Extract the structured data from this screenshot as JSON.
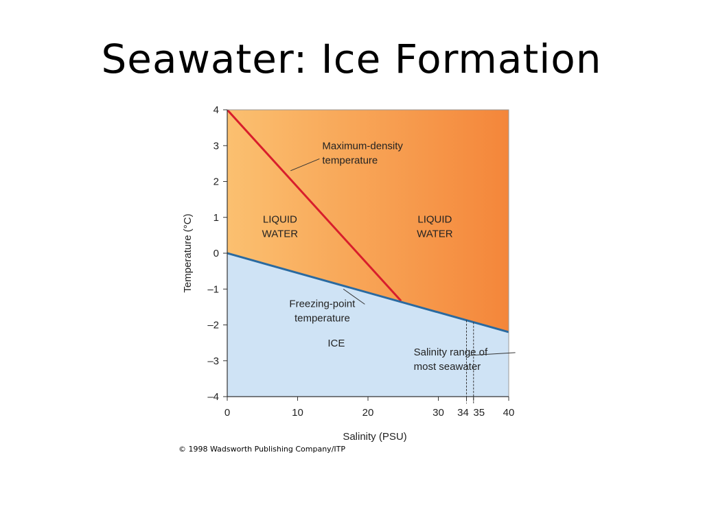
{
  "slide": {
    "title": "Seawater: Ice Formation",
    "credit": "© 1998 Wadsworth Publishing Company/ITP"
  },
  "chart_data": {
    "type": "line",
    "title": "",
    "xlabel": "Salinity (PSU)",
    "ylabel": "Temperature (°C)",
    "xlim": [
      0,
      40
    ],
    "ylim": [
      -4,
      4
    ],
    "x_ticks": [
      "0",
      "10",
      "20",
      "30",
      "34",
      "35",
      "40"
    ],
    "x_tick_values": [
      0,
      10,
      20,
      30,
      34,
      35,
      40
    ],
    "y_ticks": [
      "4",
      "3",
      "2",
      "1",
      "0",
      "–1",
      "–2",
      "–3",
      "–4"
    ],
    "y_tick_values": [
      4,
      3,
      2,
      1,
      0,
      -1,
      -2,
      -3,
      -4
    ],
    "grid": false,
    "series": [
      {
        "name": "Maximum-density temperature",
        "color": "#d81e2c",
        "x": [
          0,
          24.7
        ],
        "y": [
          4,
          -1.33
        ]
      },
      {
        "name": "Freezing-point temperature",
        "color": "#2a6aa0",
        "x": [
          0,
          40
        ],
        "y": [
          0,
          -2.2
        ]
      }
    ],
    "regions": [
      {
        "label": "LIQUID WATER",
        "lines": [
          "LIQUID",
          "WATER"
        ],
        "x": 7.5,
        "y": 0.85
      },
      {
        "label": "LIQUID WATER",
        "lines": [
          "LIQUID",
          "WATER"
        ],
        "x": 29.5,
        "y": 0.85
      },
      {
        "label": "ICE",
        "lines": [
          "ICE"
        ],
        "x": 15.5,
        "y": -2.6
      }
    ],
    "annotations": [
      {
        "lines": [
          "Maximum-density",
          "temperature"
        ],
        "x": 13.5,
        "y": 2.9,
        "pointer_to": [
          9,
          2.3
        ]
      },
      {
        "lines": [
          "Freezing-point",
          "temperature"
        ],
        "x": 13.5,
        "y": -1.5,
        "pointer_to": [
          16.5,
          -1.0
        ]
      },
      {
        "lines": [
          "Salinity range of",
          "most seawater"
        ],
        "x": 26.5,
        "y": -2.85,
        "pointer_to": [
          34.5,
          -2.85
        ]
      }
    ],
    "marked_range": [
      34,
      35
    ],
    "colors": {
      "liquid_light": "#fbc070",
      "liquid_dark": "#f4863a",
      "ice": "#cfe3f5"
    }
  }
}
